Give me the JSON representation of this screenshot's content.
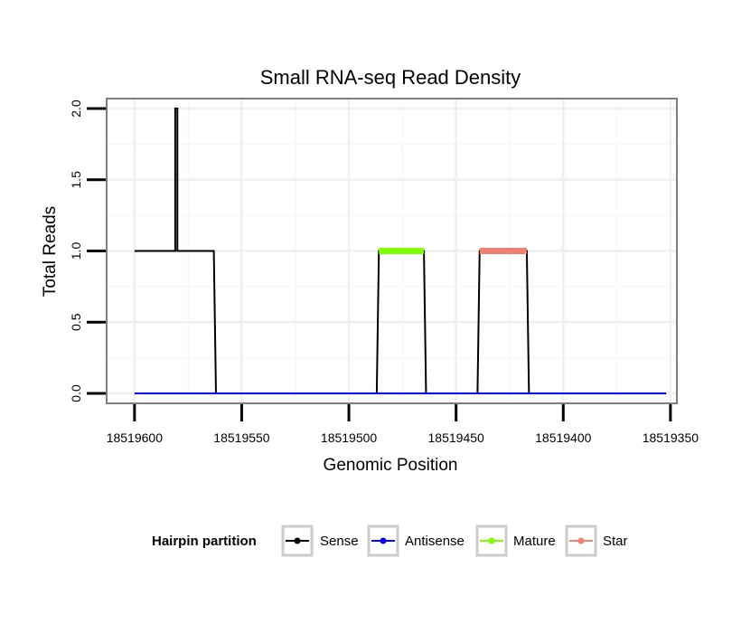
{
  "chart_data": {
    "type": "line",
    "title": "Small RNA-seq Read Density",
    "xlabel": "Genomic Position",
    "ylabel": "Total Reads",
    "x_reversed": true,
    "xlim": [
      18519613,
      18519347
    ],
    "ylim": [
      -0.07,
      2.07
    ],
    "x_ticks": [
      18519600,
      18519550,
      18519500,
      18519450,
      18519400,
      18519350
    ],
    "x_tick_labels": [
      "18519600",
      "18519550",
      "18519500",
      "18519450",
      "18519400",
      "18519350"
    ],
    "y_ticks": [
      0.0,
      0.5,
      1.0,
      1.5,
      2.0
    ],
    "y_tick_labels": [
      "0.0",
      "0.5",
      "1.0",
      "1.5",
      "2.0"
    ],
    "grid": true,
    "legend": {
      "title": "Hairpin partition",
      "position": "bottom",
      "entries": [
        "Sense",
        "Antisense",
        "Mature",
        "Star"
      ]
    },
    "series": [
      {
        "name": "Sense",
        "color": "#000000",
        "x": [
          18519600,
          18519581,
          18519581,
          18519580,
          18519580,
          18519563,
          18519562,
          18519487,
          18519486,
          18519465,
          18519464,
          18519440,
          18519439,
          18519417,
          18519416,
          18519352
        ],
        "y": [
          1,
          1,
          2,
          2,
          1,
          1,
          0,
          0,
          1,
          1,
          0,
          0,
          1,
          1,
          0,
          0
        ]
      },
      {
        "name": "Antisense",
        "color": "#0000ff",
        "x": [
          18519600,
          18519352
        ],
        "y": [
          0,
          0
        ]
      },
      {
        "name": "Mature",
        "color": "#7fff00",
        "x": [
          18519486,
          18519465
        ],
        "y": [
          1,
          1
        ]
      },
      {
        "name": "Star",
        "color": "#f08070",
        "x": [
          18519439,
          18519417
        ],
        "y": [
          1,
          1
        ]
      }
    ]
  }
}
